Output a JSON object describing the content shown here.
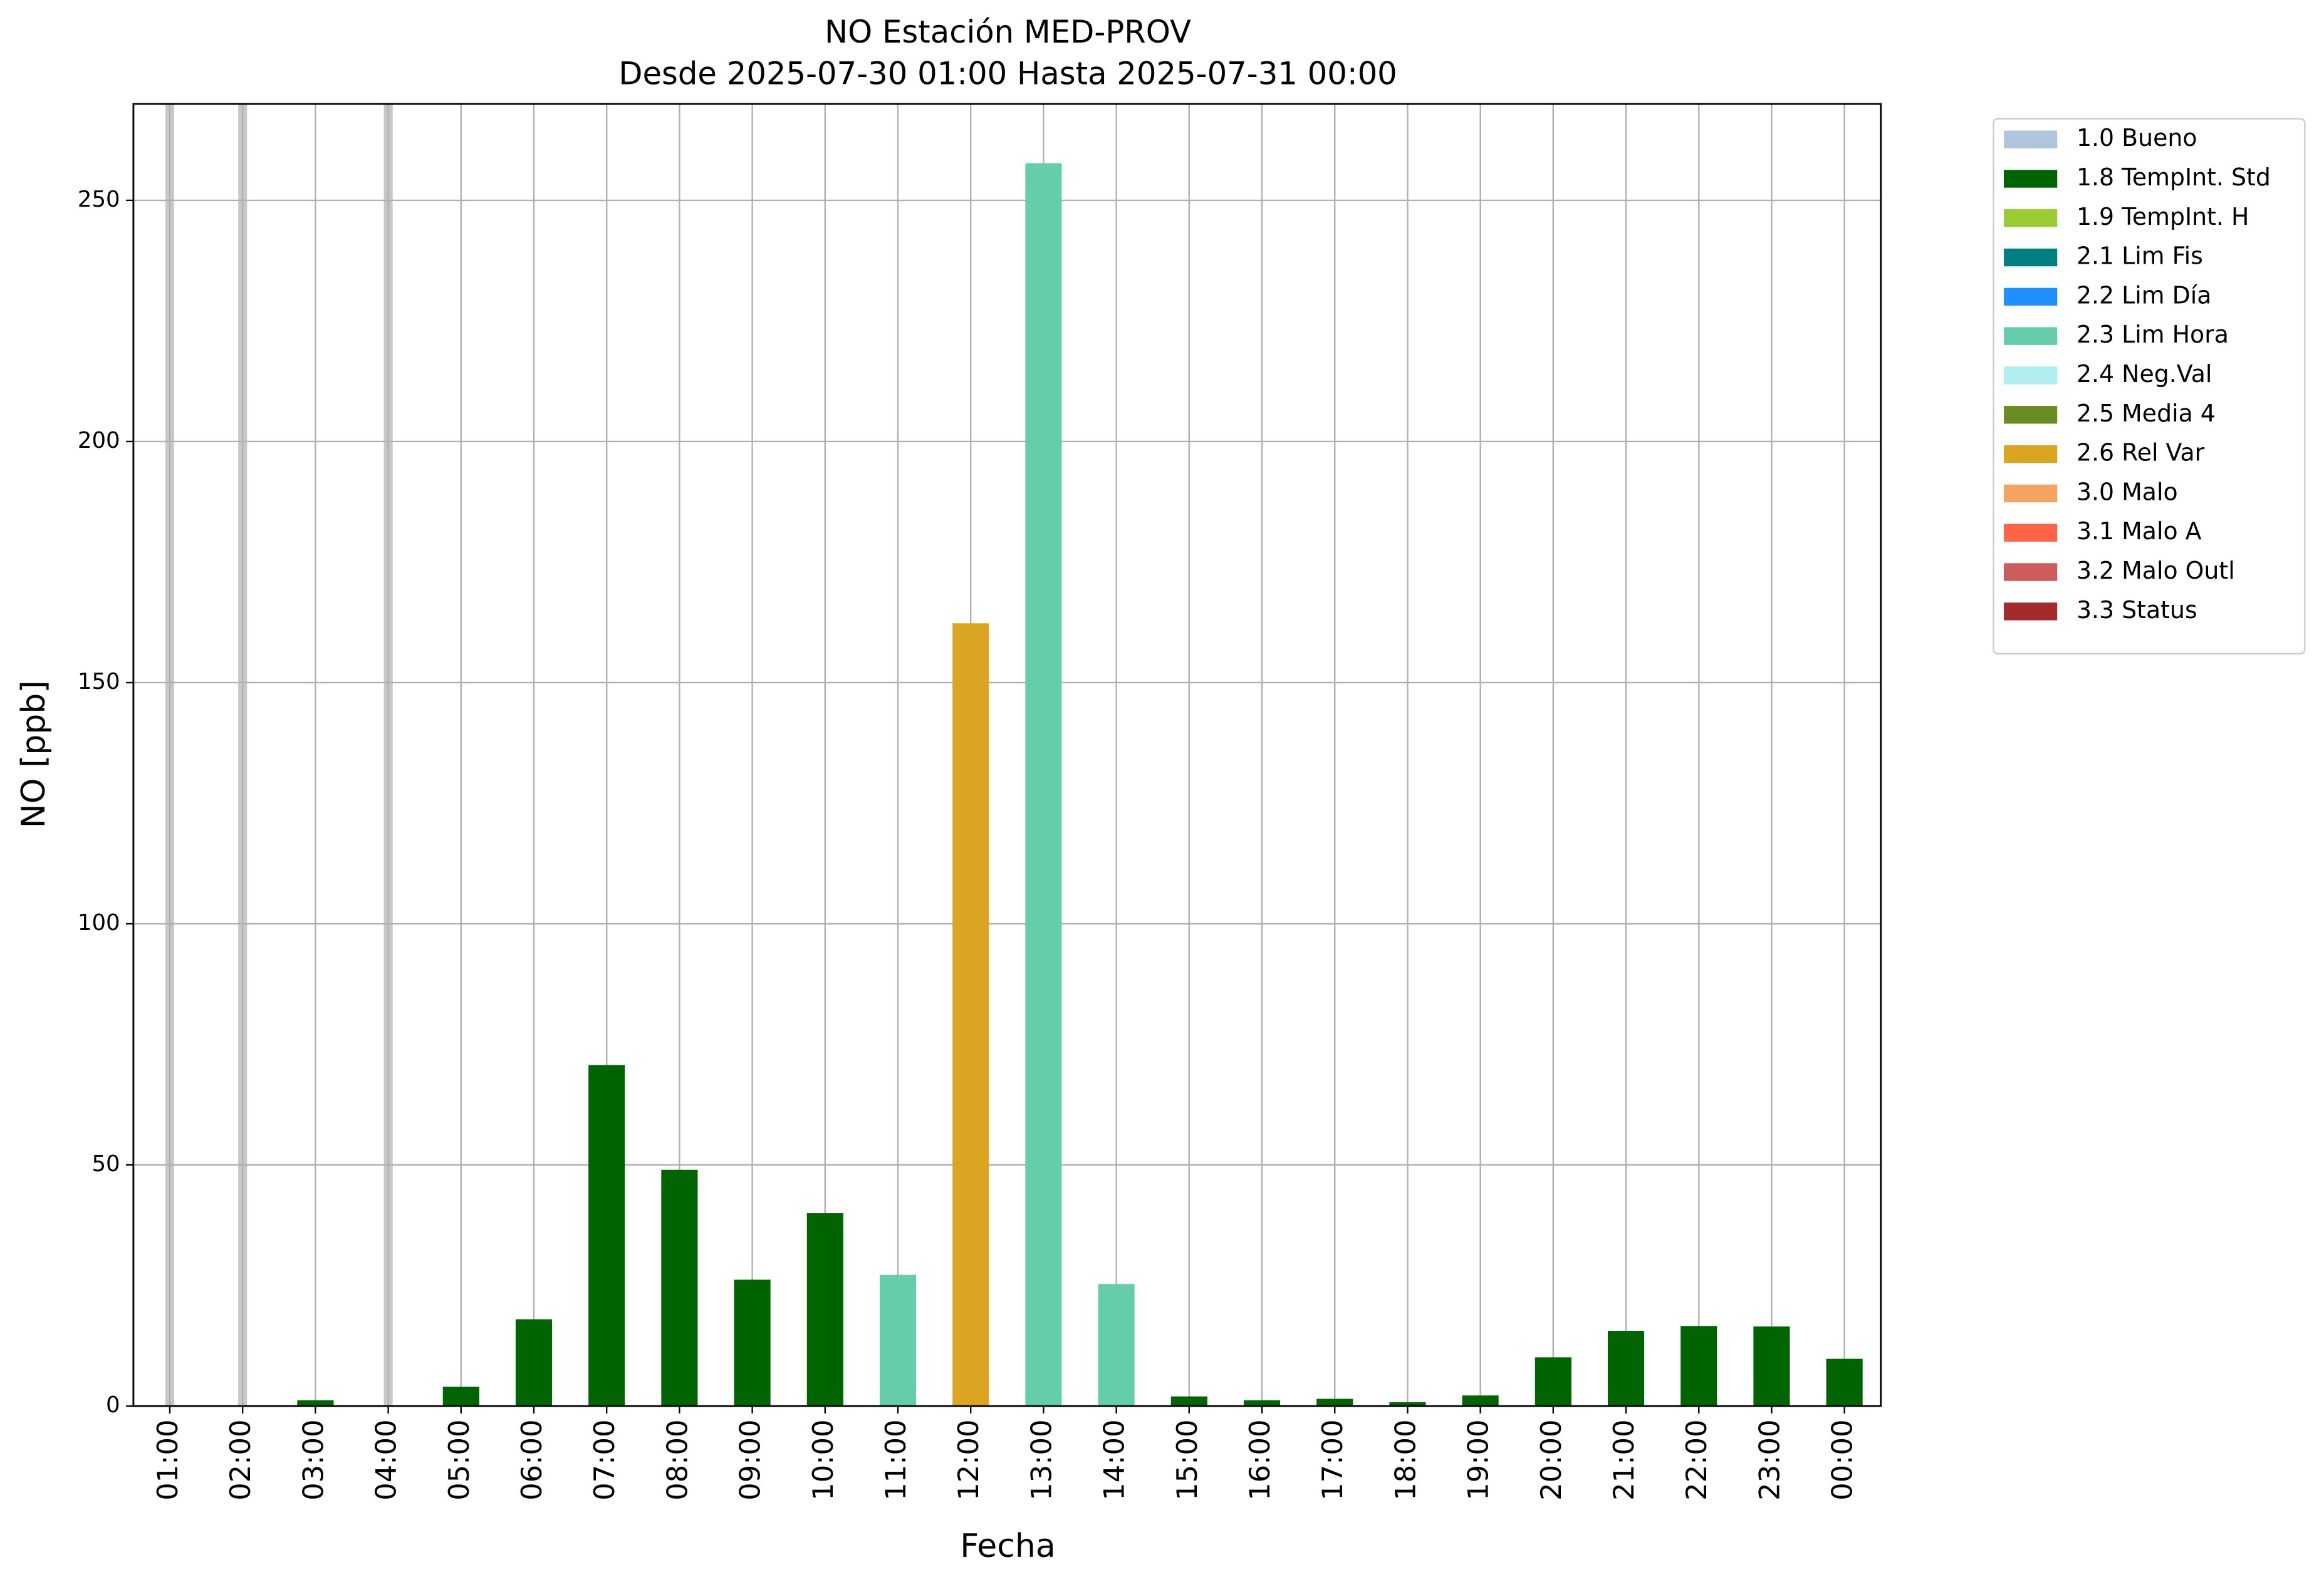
{
  "chart_data": {
    "type": "bar",
    "title": "NO Estación MED-PROV",
    "subtitle": "Desde 2025-07-30 01:00 Hasta 2025-07-31 00:00",
    "x_label": "Fecha",
    "y_label": "NO [ppb]",
    "categories": [
      "01:00",
      "02:00",
      "03:00",
      "04:00",
      "05:00",
      "06:00",
      "07:00",
      "08:00",
      "09:00",
      "10:00",
      "11:00",
      "12:00",
      "13:00",
      "14:00",
      "15:00",
      "16:00",
      "17:00",
      "18:00",
      "19:00",
      "20:00",
      "21:00",
      "22:00",
      "23:00",
      "00:00"
    ],
    "ylim": [
      0,
      270
    ],
    "yticks": [
      0,
      50,
      100,
      150,
      200,
      250
    ],
    "grid": true,
    "legend": "outside-right",
    "missing_color": "#c8c8c8",
    "series": [
      {
        "name": "1.0 Bueno",
        "color": "#b0c4de",
        "values": [
          null,
          null,
          null,
          null,
          null,
          null,
          null,
          null,
          null,
          null,
          null,
          null,
          null,
          null,
          null,
          null,
          null,
          null,
          null,
          null,
          null,
          null,
          null,
          null
        ]
      },
      {
        "name": "1.8 TempInt. Std",
        "color": "#006400",
        "values": [
          null,
          null,
          1.2,
          null,
          4,
          18,
          70.7,
          49,
          26.2,
          40,
          null,
          null,
          null,
          null,
          2,
          1.2,
          1.5,
          0.8,
          2.2,
          10.1,
          15.6,
          16.6,
          16.5,
          9.8
        ]
      },
      {
        "name": "1.9 TempInt. H",
        "color": "#9acd32",
        "values": [
          null,
          null,
          null,
          null,
          null,
          null,
          null,
          null,
          null,
          null,
          null,
          null,
          null,
          null,
          null,
          null,
          null,
          null,
          null,
          null,
          null,
          null,
          null,
          null
        ]
      },
      {
        "name": "2.1 Lim Fis",
        "color": "#008080",
        "values": [
          null,
          null,
          null,
          null,
          null,
          null,
          null,
          null,
          null,
          null,
          null,
          null,
          null,
          null,
          null,
          null,
          null,
          null,
          null,
          null,
          null,
          null,
          null,
          null
        ]
      },
      {
        "name": "2.2 Lim Día",
        "color": "#1e90ff",
        "values": [
          null,
          null,
          null,
          null,
          null,
          null,
          null,
          null,
          null,
          null,
          null,
          null,
          null,
          null,
          null,
          null,
          null,
          null,
          null,
          null,
          null,
          null,
          null,
          null
        ]
      },
      {
        "name": "2.3 Lim Hora",
        "color": "#66cdaa",
        "values": [
          null,
          null,
          null,
          null,
          null,
          null,
          null,
          null,
          null,
          null,
          27.2,
          null,
          257.7,
          25.3,
          null,
          null,
          null,
          null,
          null,
          null,
          null,
          null,
          null,
          null
        ]
      },
      {
        "name": "2.4 Neg.Val",
        "color": "#afeeee",
        "values": [
          null,
          null,
          null,
          null,
          null,
          null,
          null,
          null,
          null,
          null,
          null,
          null,
          null,
          null,
          null,
          null,
          null,
          null,
          null,
          null,
          null,
          null,
          null,
          null
        ]
      },
      {
        "name": "2.5 Media 4",
        "color": "#6b8e23",
        "values": [
          null,
          null,
          null,
          null,
          null,
          null,
          null,
          null,
          null,
          null,
          null,
          null,
          null,
          null,
          null,
          null,
          null,
          null,
          null,
          null,
          null,
          null,
          null,
          null
        ]
      },
      {
        "name": "2.6 Rel Var",
        "color": "#daa520",
        "values": [
          null,
          null,
          null,
          null,
          null,
          null,
          null,
          null,
          null,
          null,
          null,
          162.3,
          null,
          null,
          null,
          null,
          null,
          null,
          null,
          null,
          null,
          null,
          null,
          null
        ]
      },
      {
        "name": "3.0 Malo",
        "color": "#f4a460",
        "values": [
          null,
          null,
          null,
          null,
          null,
          null,
          null,
          null,
          null,
          null,
          null,
          null,
          null,
          null,
          null,
          null,
          null,
          null,
          null,
          null,
          null,
          null,
          null,
          null
        ]
      },
      {
        "name": "3.1 Malo A",
        "color": "#ff6347",
        "values": [
          null,
          null,
          null,
          null,
          null,
          null,
          null,
          null,
          null,
          null,
          null,
          null,
          null,
          null,
          null,
          null,
          null,
          null,
          null,
          null,
          null,
          null,
          null,
          null
        ]
      },
      {
        "name": "3.2 Malo Outl",
        "color": "#cd5c5c",
        "values": [
          null,
          null,
          null,
          null,
          null,
          null,
          null,
          null,
          null,
          null,
          null,
          null,
          null,
          null,
          null,
          null,
          null,
          null,
          null,
          null,
          null,
          null,
          null,
          null
        ]
      },
      {
        "name": "3.3 Status",
        "color": "#a52a2a",
        "values": [
          null,
          null,
          null,
          null,
          null,
          null,
          null,
          null,
          null,
          null,
          null,
          null,
          null,
          null,
          null,
          null,
          null,
          null,
          null,
          null,
          null,
          null,
          null,
          null
        ]
      }
    ]
  }
}
